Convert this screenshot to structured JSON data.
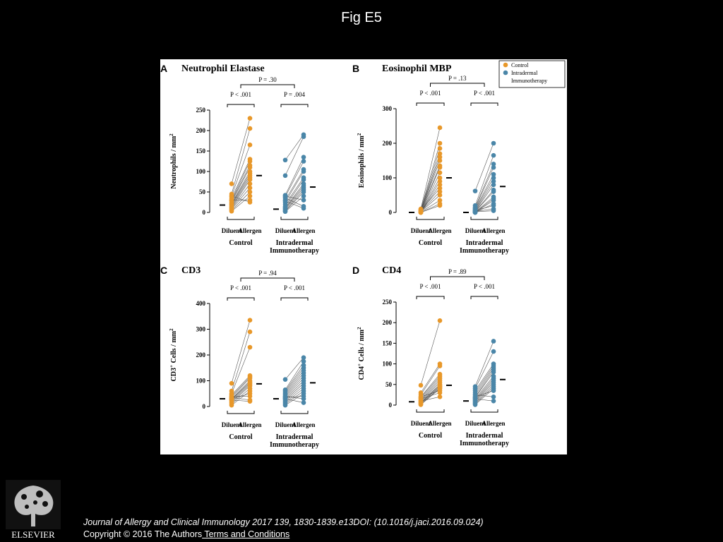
{
  "page_title": "Fig E5",
  "legend": {
    "items": [
      {
        "label": "Control",
        "color": "#E8982A"
      },
      {
        "label": "Intradermal",
        "color": "#4A86A8"
      },
      {
        "label": "Immunotherapy",
        "color": ""
      }
    ]
  },
  "colors": {
    "control": "#E8982A",
    "intradermal": "#4A86A8"
  },
  "chart_data": [
    {
      "panel": "A",
      "type": "scatter",
      "title": "Neutrophil Elastase",
      "ylabel": "Neutrophils / mm",
      "ylabel_sup": "2",
      "ylim": [
        0,
        250
      ],
      "yticks": [
        0,
        50,
        100,
        150,
        200,
        250
      ],
      "x_tick_labels": [
        "Diluent",
        "Allergen",
        "Diluent",
        "Allergen"
      ],
      "group_labels": [
        [
          "Control"
        ],
        [
          "Intradermal",
          "Immunotherapy"
        ]
      ],
      "p_values": {
        "control": "P < .001",
        "intradermal": "P = .004",
        "between": "P = .30"
      },
      "series": [
        {
          "name": "Control",
          "diluent": [
            70,
            45,
            40,
            35,
            30,
            28,
            25,
            22,
            20,
            18,
            15,
            12,
            10,
            8,
            5,
            3,
            30,
            40
          ],
          "allergen": [
            230,
            205,
            165,
            130,
            125,
            115,
            110,
            100,
            95,
            90,
            85,
            80,
            70,
            60,
            50,
            40,
            30,
            25
          ],
          "median_diluent": 18,
          "median_allergen": 90
        },
        {
          "name": "Intradermal Immunotherapy",
          "diluent": [
            128,
            90,
            42,
            38,
            30,
            25,
            20,
            15,
            12,
            10,
            8,
            5,
            3,
            2,
            40,
            35,
            28
          ],
          "allergen": [
            190,
            185,
            135,
            125,
            105,
            100,
            85,
            80,
            70,
            65,
            60,
            55,
            50,
            40,
            30,
            15,
            10
          ],
          "median_diluent": 8,
          "median_allergen": 62
        }
      ]
    },
    {
      "panel": "B",
      "type": "scatter",
      "title": "Eosinophil MBP",
      "ylabel": "Eosinophils / mm",
      "ylabel_sup": "2",
      "ylim": [
        0,
        300
      ],
      "yticks": [
        0,
        100,
        200,
        300
      ],
      "x_tick_labels": [
        "Diluent",
        "Allergen",
        "Diluent",
        "Allergen"
      ],
      "group_labels": [
        [
          "Control"
        ],
        [
          "Intradermal",
          "Immunotherapy"
        ]
      ],
      "p_values": {
        "control": "P < .001",
        "intradermal": "P < .001",
        "between": "P = .13"
      },
      "series": [
        {
          "name": "Control",
          "diluent": [
            10,
            8,
            6,
            5,
            4,
            3,
            2,
            1,
            0,
            0,
            0,
            0,
            5,
            3,
            2,
            1,
            0,
            0
          ],
          "allergen": [
            245,
            200,
            185,
            170,
            160,
            150,
            135,
            130,
            115,
            100,
            90,
            80,
            70,
            60,
            50,
            35,
            25,
            20
          ],
          "median_diluent": 0,
          "median_allergen": 100
        },
        {
          "name": "Intradermal Immunotherapy",
          "diluent": [
            62,
            20,
            15,
            12,
            10,
            8,
            5,
            4,
            3,
            2,
            1,
            0,
            0,
            0,
            5,
            3,
            2
          ],
          "allergen": [
            200,
            165,
            140,
            130,
            110,
            100,
            90,
            80,
            65,
            60,
            45,
            40,
            35,
            25,
            20,
            10,
            5
          ],
          "median_diluent": 0,
          "median_allergen": 75
        }
      ]
    },
    {
      "panel": "C",
      "type": "scatter",
      "title": "CD3",
      "ylabel": "CD3",
      "ylabel_sup": "+",
      "ylabel_suffix": " Cells / mm",
      "ylabel_sup2": "2",
      "ylim": [
        0,
        400
      ],
      "yticks": [
        0,
        100,
        200,
        300,
        400
      ],
      "x_tick_labels": [
        "Diluent",
        "Allergen",
        "Diluent",
        "Allergen"
      ],
      "group_labels": [
        [
          "Control"
        ],
        [
          "Intradermal",
          "Immunotherapy"
        ]
      ],
      "p_values": {
        "control": "P < .001",
        "intradermal": "P < .001",
        "between": "P = .94"
      },
      "series": [
        {
          "name": "Control",
          "diluent": [
            90,
            60,
            50,
            45,
            40,
            35,
            30,
            28,
            25,
            20,
            15,
            10,
            5,
            30,
            40,
            35,
            25
          ],
          "allergen": [
            335,
            290,
            230,
            120,
            115,
            110,
            100,
            95,
            90,
            85,
            80,
            70,
            60,
            50,
            40,
            25,
            20
          ],
          "median_diluent": 30,
          "median_allergen": 88
        },
        {
          "name": "Intradermal Immunotherapy",
          "diluent": [
            105,
            65,
            60,
            55,
            50,
            45,
            40,
            35,
            30,
            25,
            20,
            15,
            10,
            5,
            35,
            40,
            30
          ],
          "allergen": [
            190,
            175,
            160,
            150,
            140,
            130,
            120,
            110,
            100,
            90,
            80,
            70,
            60,
            50,
            40,
            30,
            15
          ],
          "median_diluent": 30,
          "median_allergen": 92
        }
      ]
    },
    {
      "panel": "D",
      "type": "scatter",
      "title": "CD4",
      "ylabel": "CD4",
      "ylabel_sup": "+",
      "ylabel_suffix": " Cells / mm",
      "ylabel_sup2": "2",
      "ylim": [
        0,
        250
      ],
      "yticks": [
        0,
        50,
        100,
        150,
        200,
        250
      ],
      "x_tick_labels": [
        "Diluent",
        "Allergen",
        "Diluent",
        "Allergen"
      ],
      "group_labels": [
        [
          "Control"
        ],
        [
          "Intradermal",
          "Immunotherapy"
        ]
      ],
      "p_values": {
        "control": "P < .001",
        "intradermal": "P < .001",
        "between": "P = .89"
      },
      "series": [
        {
          "name": "Control",
          "diluent": [
            48,
            30,
            25,
            20,
            18,
            15,
            12,
            10,
            8,
            6,
            4,
            2,
            1,
            20,
            15,
            10,
            5
          ],
          "allergen": [
            205,
            100,
            95,
            75,
            70,
            65,
            60,
            55,
            50,
            48,
            45,
            42,
            40,
            35,
            30,
            20,
            45
          ],
          "median_diluent": 8,
          "median_allergen": 48
        },
        {
          "name": "Intradermal Immunotherapy",
          "diluent": [
            45,
            40,
            35,
            30,
            25,
            20,
            18,
            15,
            12,
            10,
            8,
            5,
            3,
            1,
            20,
            25,
            15
          ],
          "allergen": [
            155,
            130,
            100,
            95,
            90,
            85,
            80,
            70,
            65,
            60,
            55,
            50,
            45,
            40,
            35,
            20,
            10
          ],
          "median_diluent": 10,
          "median_allergen": 62
        }
      ]
    }
  ],
  "footer": {
    "citation": "Journal of Allergy and Clinical Immunology 2017 139, 1830-1839.e13DOI: (10.1016/j.jaci.2016.09.024)",
    "copyright": "Copyright © 2016 The Authors",
    "terms_link": " Terms and Conditions"
  },
  "logo": {
    "text": "ELSEVIER"
  }
}
